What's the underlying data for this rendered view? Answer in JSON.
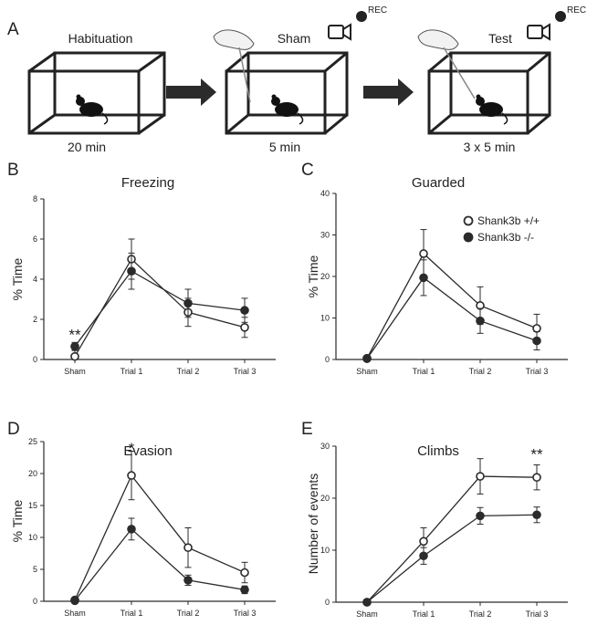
{
  "panel_a": {
    "letter": "A",
    "stages": [
      {
        "name": "Habituation",
        "duration": "20 min"
      },
      {
        "name": "Sham",
        "duration": "5 min"
      },
      {
        "name": "Test",
        "duration": "3 x 5 min"
      }
    ],
    "rec_label": "REC"
  },
  "legend": {
    "wt": "Shank3b +/+",
    "ko": "Shank3b -/-"
  },
  "colors": {
    "line": "#2b2b2b",
    "open_fill": "#ffffff",
    "closed_fill": "#2b2b2b"
  },
  "chart_data": [
    {
      "id": "freezing",
      "letter": "B",
      "type": "line",
      "title": "Freezing",
      "ylabel": "% Time",
      "ylim": [
        0,
        8
      ],
      "yticks": [
        0,
        2,
        4,
        6,
        8
      ],
      "categories": [
        "Sham",
        "Trial 1",
        "Trial 2",
        "Trial 3"
      ],
      "series": [
        {
          "name": "Shank3b +/+",
          "marker": "open",
          "values": [
            0.15,
            5.0,
            2.35,
            1.6
          ],
          "err": [
            0.3,
            1.0,
            0.7,
            0.5
          ]
        },
        {
          "name": "Shank3b -/-",
          "marker": "filled",
          "values": [
            0.65,
            4.4,
            2.8,
            2.45
          ],
          "err": [
            0.2,
            0.9,
            0.7,
            0.6
          ]
        }
      ],
      "annotations": [
        {
          "text": "**",
          "category": 0,
          "value": 1.25
        }
      ]
    },
    {
      "id": "guarded",
      "letter": "C",
      "type": "line",
      "title": "Guarded",
      "ylabel": "% Time",
      "ylim": [
        0,
        40
      ],
      "yticks": [
        0,
        10,
        20,
        30,
        40
      ],
      "categories": [
        "Sham",
        "Trial 1",
        "Trial 2",
        "Trial 3"
      ],
      "series": [
        {
          "name": "Shank3b +/+",
          "marker": "open",
          "values": [
            0.3,
            25.5,
            13.0,
            7.5
          ],
          "err": [
            0.3,
            5.8,
            4.5,
            3.4
          ]
        },
        {
          "name": "Shank3b -/-",
          "marker": "filled",
          "values": [
            0.2,
            19.7,
            9.3,
            4.5
          ],
          "err": [
            0.2,
            4.3,
            3.0,
            2.2
          ]
        }
      ],
      "annotations": []
    },
    {
      "id": "evasion",
      "letter": "D",
      "type": "line",
      "title": "Evasion",
      "ylabel": "% Time",
      "ylim": [
        0,
        25
      ],
      "yticks": [
        0,
        5,
        10,
        15,
        20,
        25
      ],
      "categories": [
        "Sham",
        "Trial 1",
        "Trial 2",
        "Trial 3"
      ],
      "series": [
        {
          "name": "Shank3b +/+",
          "marker": "open",
          "values": [
            0.2,
            19.7,
            8.4,
            4.5
          ],
          "err": [
            0.2,
            3.8,
            3.1,
            1.6
          ]
        },
        {
          "name": "Shank3b -/-",
          "marker": "filled",
          "values": [
            0.1,
            11.3,
            3.3,
            1.8
          ],
          "err": [
            0.1,
            1.7,
            0.8,
            0.6
          ]
        }
      ],
      "annotations": [
        {
          "text": "*",
          "category": 1,
          "value": 24.0
        }
      ]
    },
    {
      "id": "climbs",
      "letter": "E",
      "type": "line",
      "title": "Climbs",
      "ylabel": "Number of events",
      "ylim": [
        0,
        30
      ],
      "yticks": [
        0,
        10,
        20,
        30
      ],
      "categories": [
        "Sham",
        "Trial 1",
        "Trial 2",
        "Trial 3"
      ],
      "series": [
        {
          "name": "Shank3b +/+",
          "marker": "open",
          "values": [
            0.0,
            11.7,
            24.2,
            24.0
          ],
          "err": [
            0.0,
            2.6,
            3.4,
            2.4
          ]
        },
        {
          "name": "Shank3b -/-",
          "marker": "filled",
          "values": [
            0.0,
            8.9,
            16.6,
            16.8
          ],
          "err": [
            0.0,
            1.6,
            1.6,
            1.5
          ]
        }
      ],
      "annotations": [
        {
          "text": "**",
          "category": 3,
          "value": 28.5
        }
      ]
    }
  ]
}
